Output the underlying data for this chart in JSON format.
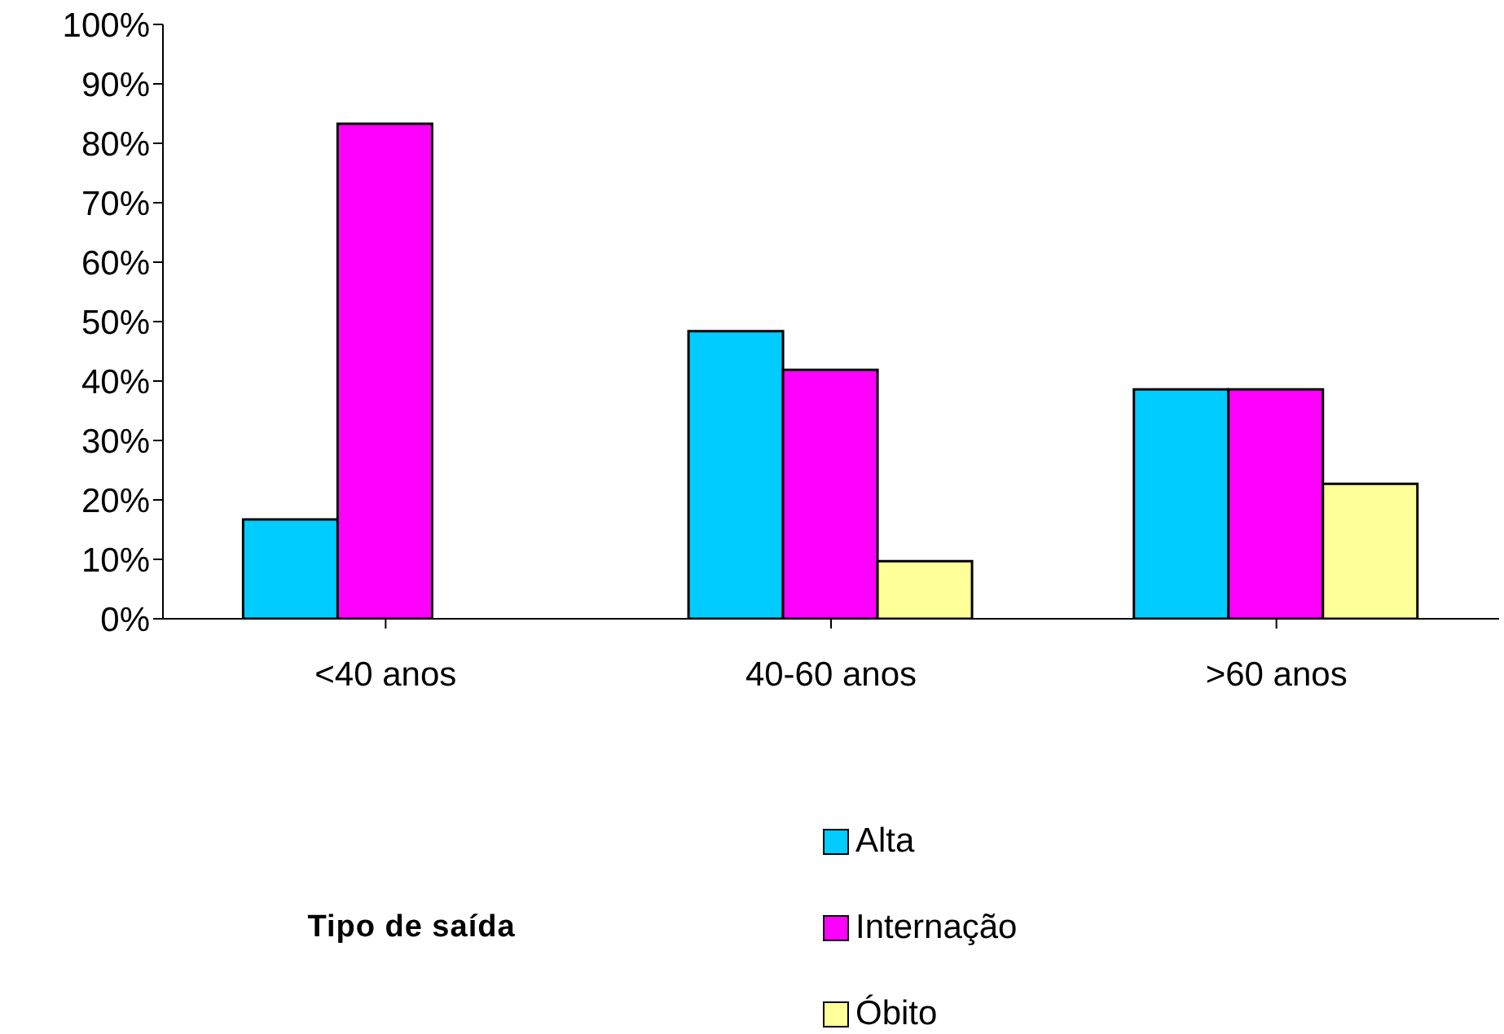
{
  "chart_data": {
    "type": "bar",
    "categories": [
      "<40 anos",
      "40-60 anos",
      ">60 anos"
    ],
    "series": [
      {
        "name": "Alta",
        "color": "#00ccff",
        "values": [
          16.7,
          48.4,
          38.6
        ]
      },
      {
        "name": "Internação",
        "color": "#ff00ff",
        "values": [
          83.3,
          41.9,
          38.6
        ]
      },
      {
        "name": "Óbito",
        "color": "#ffff99",
        "values": [
          0,
          9.7,
          22.7
        ]
      }
    ],
    "ylim": [
      0,
      100
    ],
    "yticks": [
      {
        "value": 0,
        "label": "0%"
      },
      {
        "value": 10,
        "label": "10%"
      },
      {
        "value": 20,
        "label": "20%"
      },
      {
        "value": 30,
        "label": "30%"
      },
      {
        "value": 40,
        "label": "40%"
      },
      {
        "value": 50,
        "label": "50%"
      },
      {
        "value": 60,
        "label": "60%"
      },
      {
        "value": 70,
        "label": "70%"
      },
      {
        "value": 80,
        "label": "80%"
      },
      {
        "value": 90,
        "label": "90%"
      },
      {
        "value": 100,
        "label": "100%"
      }
    ],
    "legend_title": "Tipo de saída",
    "legend": "bottom",
    "grid": false
  }
}
